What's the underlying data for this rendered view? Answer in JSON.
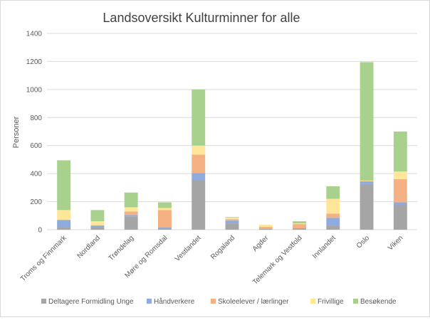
{
  "chart_data": {
    "type": "bar",
    "stacked": true,
    "title": "Landsoversikt Kulturminner for alle",
    "xlabel": "",
    "ylabel": "Personer",
    "ylim": [
      0,
      1400
    ],
    "yticks": [
      0,
      200,
      400,
      600,
      800,
      1000,
      1200,
      1400
    ],
    "grid": true,
    "legend": "bottom",
    "categories": [
      "Troms og Finnmark",
      "Nordland",
      "Trøndelag",
      "Møre og Romsdal",
      "Vestlandet",
      "Rogaland",
      "Agder",
      "Telemark og Vestfold",
      "Innlandet",
      "Oslo",
      "Viken"
    ],
    "series": [
      {
        "name": "Deltagere Formidling Unge",
        "color": "#a5a5a5",
        "values": [
          15,
          15,
          95,
          5,
          355,
          45,
          5,
          5,
          30,
          325,
          175
        ]
      },
      {
        "name": "Håndverkere",
        "color": "#8faadc",
        "values": [
          55,
          15,
          10,
          10,
          50,
          20,
          0,
          5,
          55,
          20,
          20
        ]
      },
      {
        "name": "Skoleelever / lærlinger",
        "color": "#f4b183",
        "values": [
          0,
          0,
          25,
          125,
          130,
          10,
          15,
          30,
          30,
          0,
          165
        ]
      },
      {
        "name": "Frivillige",
        "color": "#ffe699",
        "values": [
          70,
          30,
          30,
          15,
          65,
          10,
          15,
          5,
          105,
          5,
          55
        ]
      },
      {
        "name": "Besøkende",
        "color": "#a9d18e",
        "values": [
          355,
          80,
          105,
          40,
          400,
          5,
          0,
          15,
          90,
          845,
          285
        ]
      }
    ]
  }
}
